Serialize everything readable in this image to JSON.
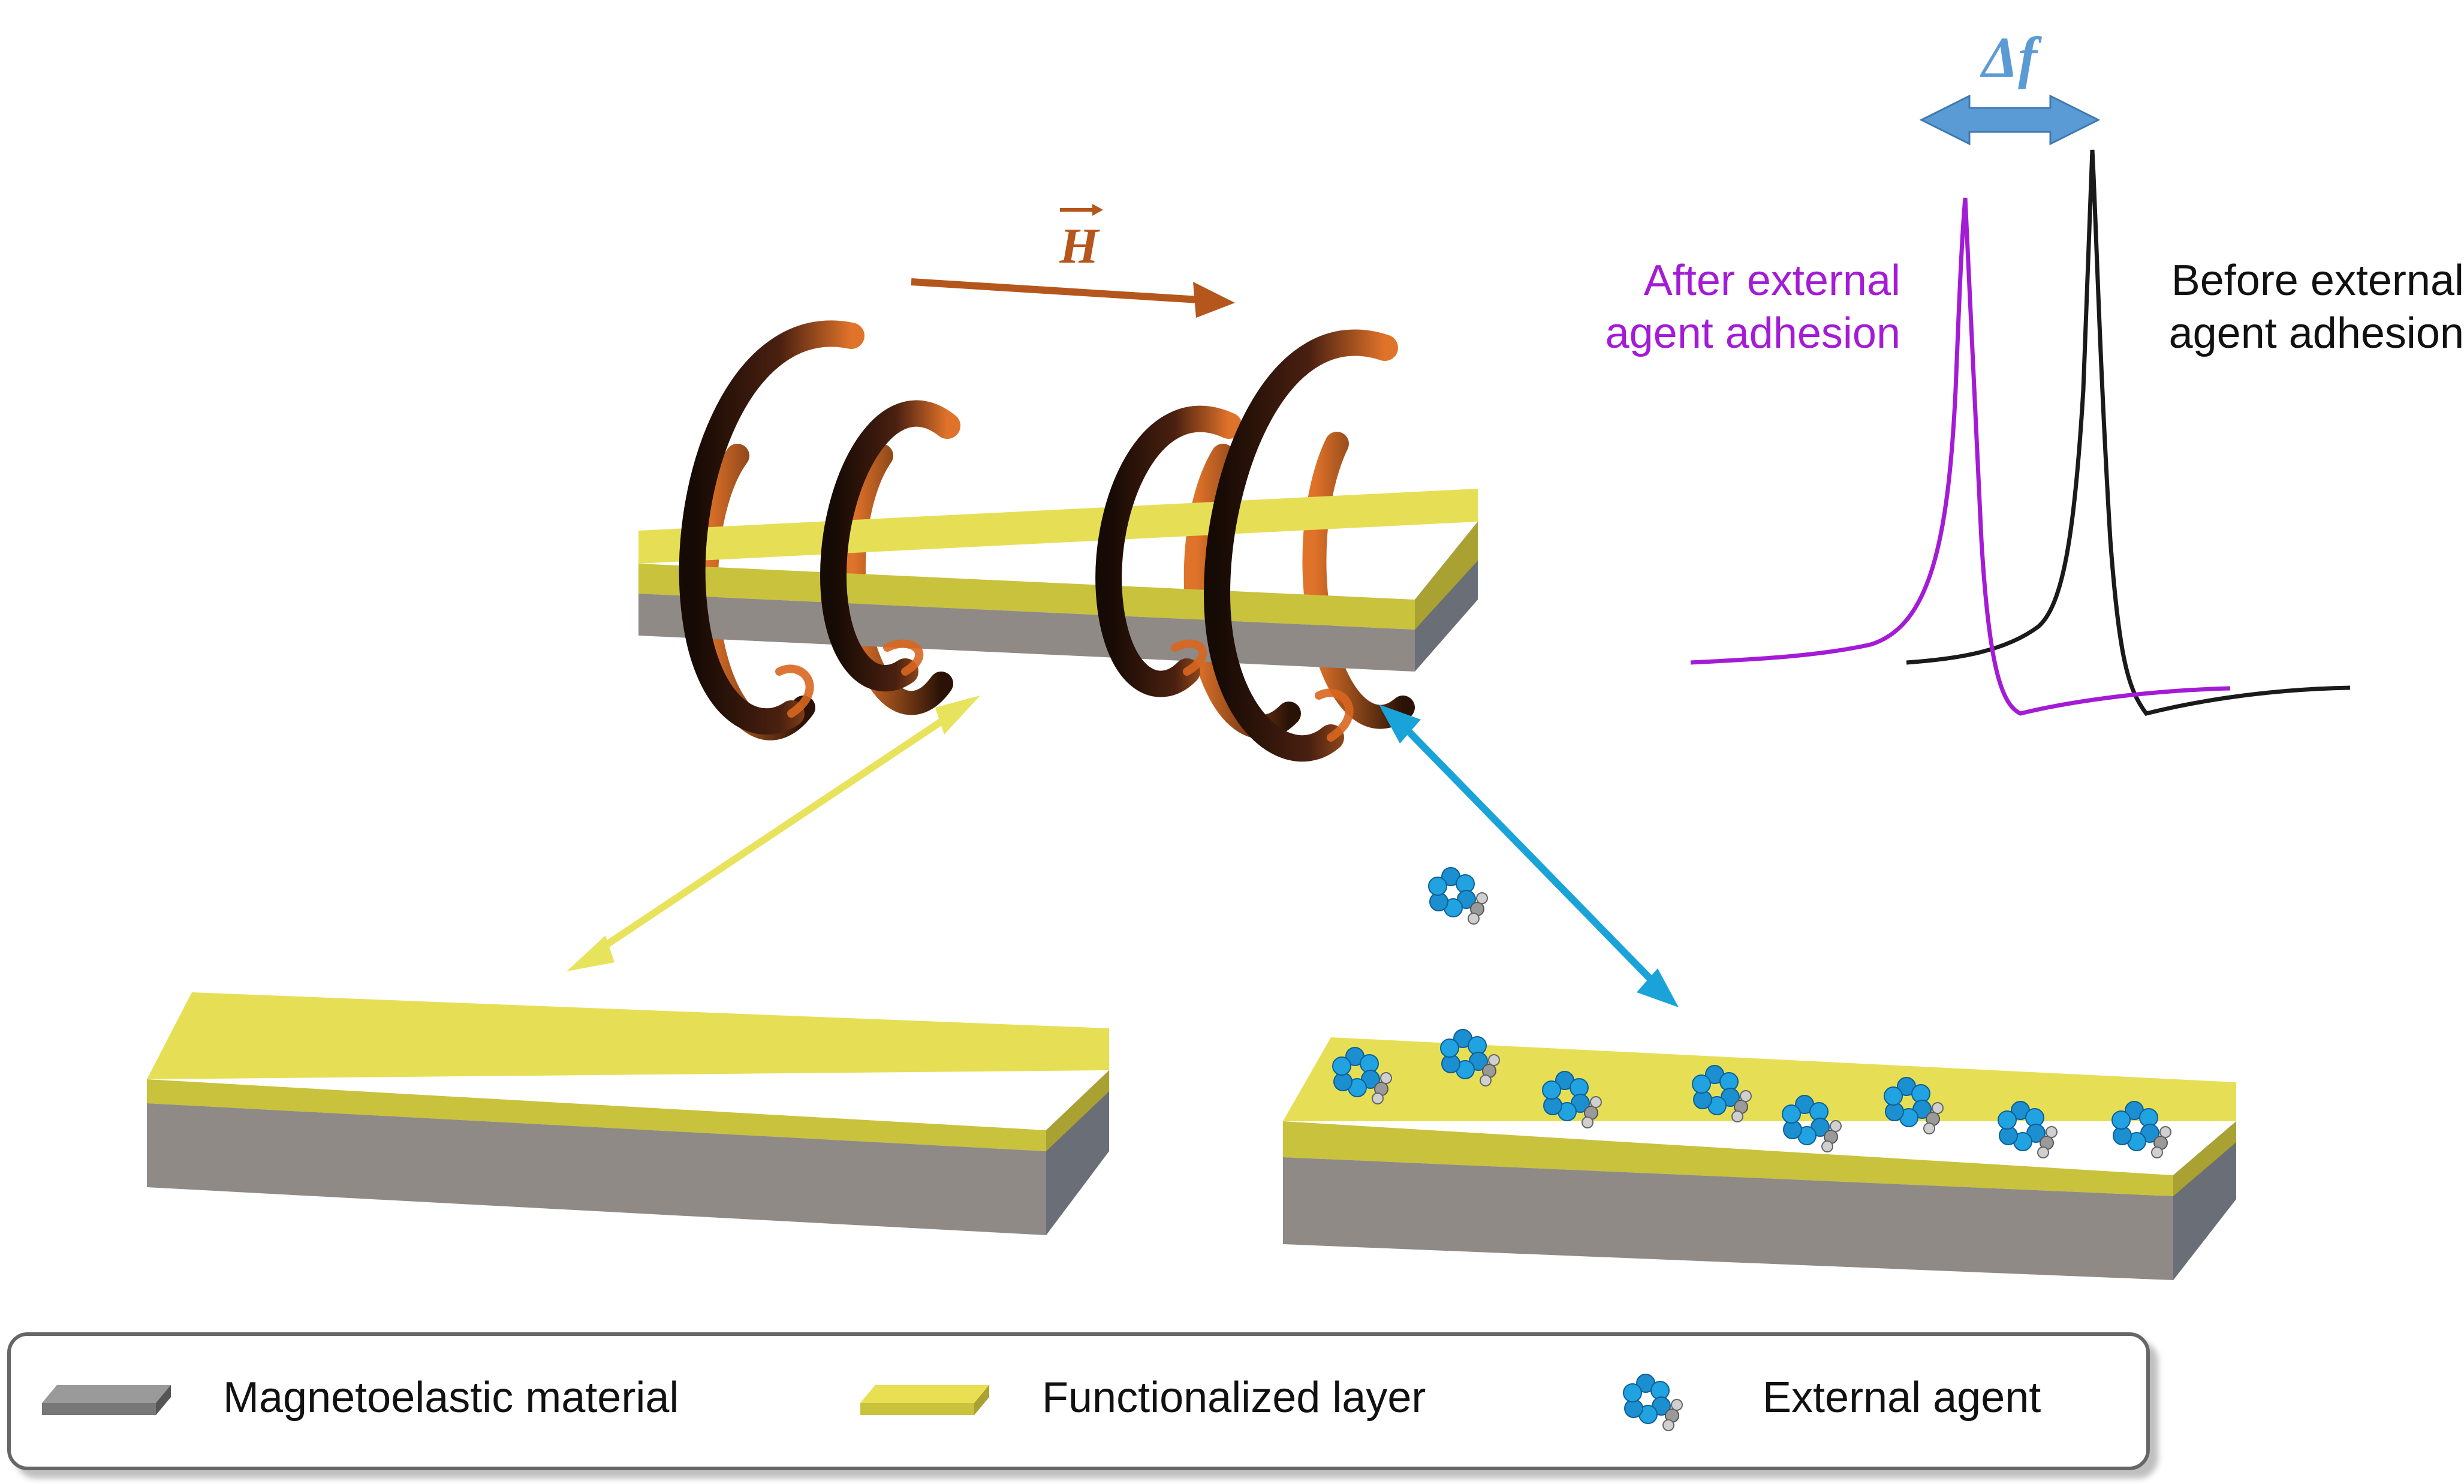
{
  "field_label": "H",
  "delta_label": "Δf",
  "after_label": [
    "After external",
    "agent adhesion"
  ],
  "before_label": [
    "Before external",
    "agent adhesion"
  ],
  "legend": {
    "magnetoelastic": "Magnetoelastic material",
    "functionalized": "Functionalized layer",
    "agent": "External agent"
  },
  "colors": {
    "after_curve": "#a41bd6",
    "before_curve": "#1a1a1a",
    "delta_arrow": "#5b9bd5",
    "field_arrow": "#b5561c",
    "yellow_arrow": "#e8e35c",
    "cyan_arrow": "#1aa3d9",
    "functional_layer": "#e8e052",
    "magnetoelastic": "#8f8a86",
    "coil": "#d0621f"
  }
}
